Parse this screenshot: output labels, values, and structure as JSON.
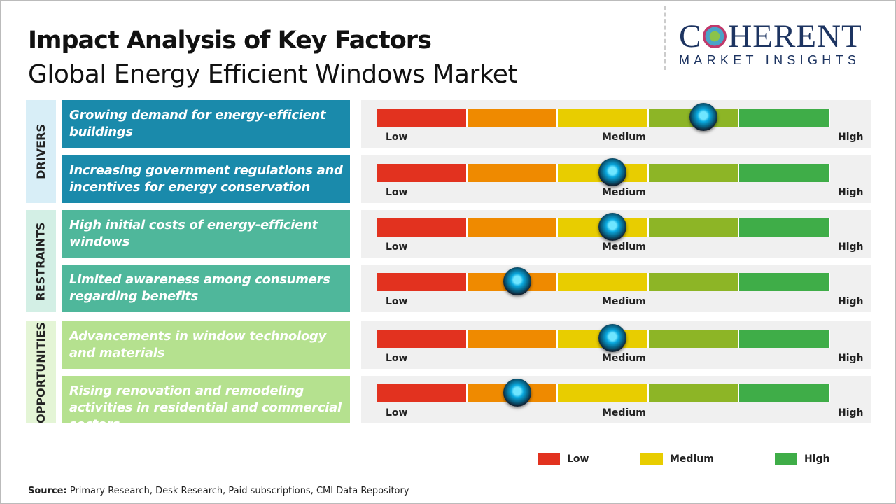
{
  "header": {
    "title": "Impact Analysis of Key Factors",
    "subtitle": "Global Energy Efficient Windows Market"
  },
  "logo": {
    "line1_a": "C",
    "line1_b": "HERENT",
    "line2": "MARKET INSIGHTS"
  },
  "categories": [
    {
      "label": "DRIVERS",
      "color": "#1a8aab",
      "bg": "#d8eef7"
    },
    {
      "label": "RESTRAINTS",
      "color": "#4fb79b",
      "bg": "#d3efe5"
    },
    {
      "label": "OPPORTUNITIES",
      "color": "#b5e18f",
      "bg": "#e4f5d6"
    }
  ],
  "factors": [
    {
      "category": 0,
      "text": "Growing demand for energy-efficient buildings",
      "impact": 0.72
    },
    {
      "category": 0,
      "text": "Increasing government regulations and incentives for energy conservation",
      "impact": 0.52
    },
    {
      "category": 1,
      "text": "High initial costs of energy-efficient windows",
      "impact": 0.52
    },
    {
      "category": 1,
      "text": "Limited awareness among consumers regarding benefits",
      "impact": 0.31
    },
    {
      "category": 2,
      "text": "Advancements in window technology and materials",
      "impact": 0.52
    },
    {
      "category": 2,
      "text": "Rising renovation and remodeling activities in residential and commercial sectors",
      "impact": 0.31
    }
  ],
  "scale": {
    "low": "Low",
    "medium": "Medium",
    "high": "High",
    "segment_colors": [
      "#e2321f",
      "#ef8a00",
      "#e8cd00",
      "#8db526",
      "#3fad48"
    ]
  },
  "legend": [
    {
      "label": "Low",
      "color": "#e2321f"
    },
    {
      "label": "Medium",
      "color": "#e8cd00"
    },
    {
      "label": "High",
      "color": "#3fad48"
    }
  ],
  "source": {
    "label": "Source:",
    "text": " Primary Research, Desk Research, Paid subscriptions, CMI Data Repository"
  }
}
